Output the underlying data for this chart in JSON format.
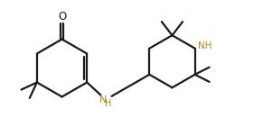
{
  "bg_color": "#ffffff",
  "line_color": "#1a1a1a",
  "line_width": 1.6,
  "text_color": "#1a1a1a",
  "nh_color": "#b8860b",
  "o_color": "#1a1a1a",
  "figsize": [
    2.91,
    1.51
  ],
  "dpi": 100,
  "xlim": [
    0,
    10
  ],
  "ylim": [
    0,
    5.2
  ]
}
